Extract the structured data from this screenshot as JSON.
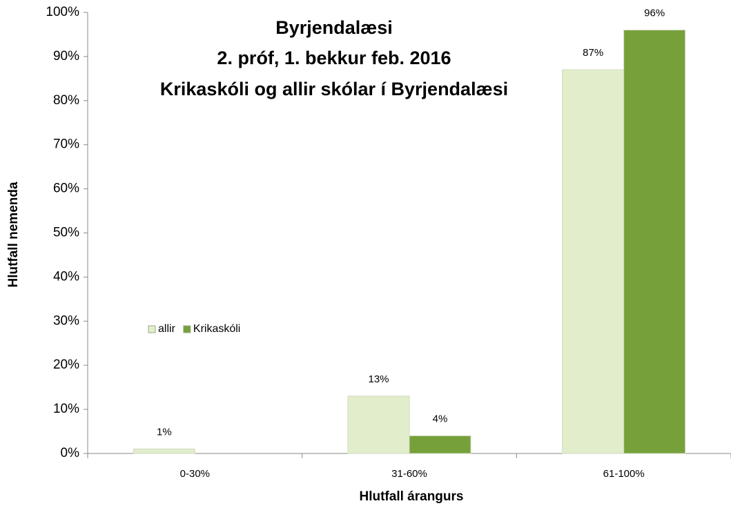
{
  "chart_data": {
    "type": "bar",
    "title": [
      "Byrjendalæsi",
      "2. próf, 1. bekkur feb. 2016",
      "Krikaskóli og allir skólar í Byrjendalæsi"
    ],
    "x_label": "Hlutfall árangurs",
    "y_label": "Hlutfall nemenda",
    "categories": [
      "0-30%",
      "31-60%",
      "61-100%"
    ],
    "series": [
      {
        "name": "allir",
        "color": "#e2eecb",
        "values": [
          1,
          13,
          87
        ],
        "value_labels": [
          "1%",
          "13%",
          "87%"
        ]
      },
      {
        "name": "Krikaskóli",
        "color": "#76a03a",
        "values": [
          null,
          4,
          96
        ],
        "value_labels": [
          null,
          "4%",
          "96%"
        ]
      }
    ],
    "ylim": [
      0,
      100
    ],
    "yticks": [
      {
        "value": 0,
        "label": "0%"
      },
      {
        "value": 10,
        "label": "10%"
      },
      {
        "value": 20,
        "label": "20%"
      },
      {
        "value": 30,
        "label": "30%"
      },
      {
        "value": 40,
        "label": "40%"
      },
      {
        "value": 50,
        "label": "50%"
      },
      {
        "value": 60,
        "label": "60%"
      },
      {
        "value": 70,
        "label": "70%"
      },
      {
        "value": 80,
        "label": "80%"
      },
      {
        "value": 90,
        "label": "90%"
      },
      {
        "value": 100,
        "label": "100%"
      }
    ],
    "grid": false,
    "legend": "left"
  }
}
